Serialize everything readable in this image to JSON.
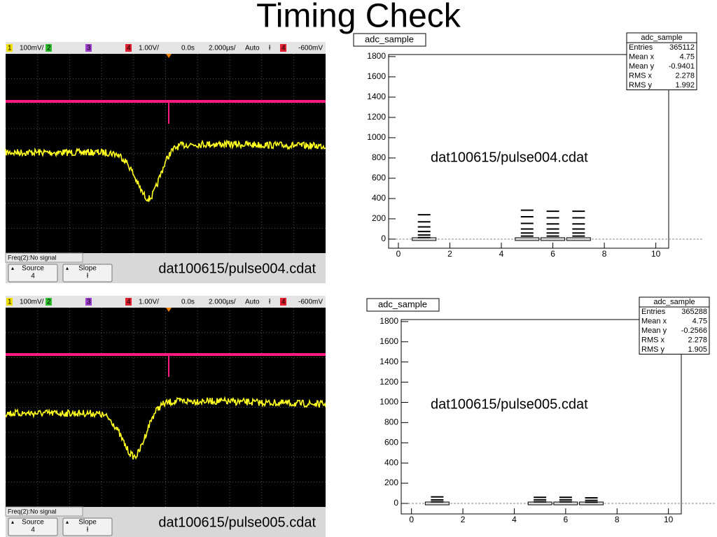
{
  "title": "Timing Check",
  "scopes": [
    {
      "header": [
        "1",
        "100mV/",
        "2",
        "3",
        "4",
        "1.00V/",
        "0.0s",
        "2.000µs/",
        "Auto",
        "ł",
        "4",
        "-600mV"
      ],
      "status": "Freq(2):No signal",
      "buttons": [
        {
          "label": "Source",
          "value": "4"
        },
        {
          "label": "Slope",
          "value": "ł"
        }
      ],
      "caption": "dat100615/pulse004.cdat"
    },
    {
      "header": [
        "1",
        "100mV/",
        "2",
        "3",
        "4",
        "1.00V/",
        "0.0s",
        "2.000µs/",
        "Auto",
        "ł",
        "4",
        "-600mV"
      ],
      "status": "Freq(2):No signal",
      "buttons": [
        {
          "label": "Source",
          "value": "4"
        },
        {
          "label": "Slope",
          "value": "ł"
        }
      ],
      "caption": "dat100615/pulse005.cdat"
    }
  ],
  "histograms": [
    {
      "title": "adc_sample",
      "stats_title": "adc_sample",
      "stats": [
        {
          "label": "Entries",
          "value": "365112"
        },
        {
          "label": "Mean x",
          "value": "4.75"
        },
        {
          "label": "Mean y",
          "value": "-0.9401"
        },
        {
          "label": "RMS x",
          "value": "2.278"
        },
        {
          "label": "RMS y",
          "value": "1.992"
        }
      ],
      "annotation": "dat100615/pulse004.cdat",
      "xlim": [
        -0.38,
        10.5
      ],
      "ylim": [
        -90,
        1820
      ],
      "xticks": [
        0,
        2,
        4,
        6,
        8,
        10
      ],
      "yticks": [
        0,
        200,
        400,
        600,
        800,
        1000,
        1200,
        1400,
        1600,
        1800
      ],
      "clusters": [
        {
          "x": 1,
          "levels": [
            240,
            170,
            120,
            75,
            40,
            15
          ]
        },
        {
          "x": 5,
          "levels": [
            285,
            220,
            155,
            100,
            60,
            30
          ]
        },
        {
          "x": 6,
          "levels": [
            275,
            210,
            150,
            100,
            60,
            30
          ]
        },
        {
          "x": 7,
          "levels": [
            275,
            210,
            150,
            100,
            60,
            30
          ]
        }
      ]
    },
    {
      "title": "adc_sample",
      "stats_title": "adc_sample",
      "stats": [
        {
          "label": "Entries",
          "value": "365288"
        },
        {
          "label": "Mean x",
          "value": "4.75"
        },
        {
          "label": "Mean y",
          "value": "-0.2566"
        },
        {
          "label": "RMS x",
          "value": "2.278"
        },
        {
          "label": "RMS y",
          "value": "1.905"
        }
      ],
      "annotation": "dat100615/pulse005.cdat",
      "xlim": [
        -0.4,
        10.5
      ],
      "ylim": [
        -104,
        1820
      ],
      "xticks": [
        0,
        2,
        4,
        6,
        8,
        10
      ],
      "yticks": [
        0,
        200,
        400,
        600,
        800,
        1000,
        1200,
        1400,
        1600,
        1800
      ],
      "clusters": [
        {
          "x": 1,
          "levels": [
            65,
            35,
            15
          ]
        },
        {
          "x": 5,
          "levels": [
            60,
            35,
            15
          ]
        },
        {
          "x": 6,
          "levels": [
            60,
            35,
            15
          ]
        },
        {
          "x": 7,
          "levels": [
            55,
            30,
            12
          ]
        }
      ]
    }
  ]
}
